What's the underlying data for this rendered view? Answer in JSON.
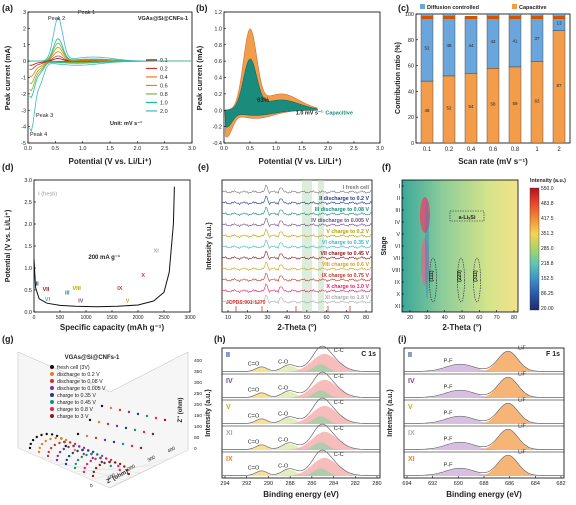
{
  "palette": {
    "cv": [
      "#8b1a1a",
      "#c0392b",
      "#e67e22",
      "#b9a100",
      "#7cb342",
      "#1abc9c",
      "#3fb6c8",
      "#e91e63",
      "#6d4c8d"
    ],
    "orange": "#f39c4a",
    "teal": "#1a8c7e",
    "blue": "#6aa6dc",
    "navy": "#1f3c88"
  },
  "chart_data": [
    {
      "panel": "(a)",
      "type": "line",
      "title": "VGAs@Si@CNFs-1",
      "xlabel": "Potential (V vs. Li/Li⁺)",
      "ylabel": "Peak current (mA)",
      "xlim": [
        0,
        3.0
      ],
      "ylim": [
        -5,
        3
      ],
      "xticks": [
        "0.0",
        "0.5",
        "1.0",
        "1.5",
        "2.0",
        "2.5",
        "3.0"
      ],
      "yticks": [
        "-5",
        "-4",
        "-3",
        "-2",
        "-1",
        "0",
        "1",
        "2",
        "3"
      ],
      "series_names": [
        "0.1",
        "0.2",
        "0.4",
        "0.6",
        "0.8",
        "1.0",
        "2.0"
      ],
      "peak_scale": [
        0.06,
        0.12,
        0.22,
        0.32,
        0.42,
        0.52,
        1.0
      ],
      "annotations": [
        "Peak 1",
        "Peak 2",
        "Peak 3",
        "Peak 4"
      ],
      "unit_label": "Unit:  mV s⁻¹"
    },
    {
      "panel": "(b)",
      "type": "area",
      "xlabel": "Potential (V vs. Li/Li⁺)",
      "ylabel": "Peak current (mA)",
      "xlim": [
        0,
        3.0
      ],
      "ylim": [
        -0.4,
        1.2
      ],
      "xticks": [
        "0.0",
        "0.5",
        "1.0",
        "1.5",
        "2.0",
        "2.5",
        "3.0"
      ],
      "yticks": [
        "-0.4",
        "-0.2",
        "0.0",
        "0.2",
        "0.4",
        "0.6",
        "0.8",
        "1.0",
        "1.2"
      ],
      "inner_label": "63%",
      "rate_label": "1.0 mV s⁻¹",
      "fill_label": "Capacitive"
    },
    {
      "panel": "(c)",
      "type": "bar",
      "xlabel": "Scan rate (mV s⁻¹)",
      "ylabel": "Contribution ratio (%)",
      "categories": [
        "0.1",
        "0.2",
        "0.4",
        "0.6",
        "0.8",
        "1",
        "2"
      ],
      "series": [
        {
          "name": "Capacitive",
          "values": [
            48,
            52,
            54,
            58,
            59,
            63,
            87
          ]
        },
        {
          "name": "Diffusion controlled",
          "values": [
            52,
            48,
            44,
            42,
            41,
            37,
            13
          ]
        }
      ],
      "ylim": [
        0,
        100
      ],
      "yticks": [
        "0",
        "20",
        "40",
        "60",
        "80",
        "100"
      ]
    },
    {
      "panel": "(d)",
      "type": "line",
      "xlabel": "Specific capacity (mAh g⁻¹)",
      "ylabel": "Potential (V vs. Li/Li⁺)",
      "xlim": [
        0,
        3000
      ],
      "ylim": [
        0,
        3.0
      ],
      "xticks": [
        "0",
        "500",
        "1000",
        "1500",
        "2000",
        "2500",
        "3000"
      ],
      "yticks": [
        "0.0",
        "0.5",
        "1.0",
        "1.5",
        "2.0",
        "2.5",
        "3.0"
      ],
      "x": [
        0,
        30,
        100,
        250,
        500,
        800,
        1200,
        1600,
        2000,
        2300,
        2500,
        2600,
        2680,
        2700
      ],
      "y": [
        1.2,
        0.55,
        0.3,
        0.2,
        0.15,
        0.13,
        0.12,
        0.13,
        0.16,
        0.25,
        0.45,
        0.9,
        2.0,
        2.85
      ],
      "fresh_label": "I (fresh)",
      "rate_label": "200 mA g⁻¹",
      "stage_labels": [
        "II",
        "III",
        "IV",
        "V",
        "VI",
        "VII",
        "VIII",
        "IX",
        "X",
        "XI"
      ]
    },
    {
      "panel": "(e)",
      "type": "line",
      "xlabel": "2-Theta (°)",
      "ylabel": "Intensity (a.u.)",
      "xticks": [
        "10",
        "20",
        "30",
        "40",
        "50",
        "60",
        "70",
        "80"
      ],
      "series_names": [
        "I fresh cell",
        "II discharge to 0.2 V",
        "III discharge to 0.08 V",
        "IV discharge to 0.005 V",
        "V charge to 0.2 V",
        "VI charge to 0.35 V",
        "VII charge to 0.45 V",
        "VIII charge to 0.6 V",
        "IX charge to 0.75 V",
        "X charge to 1.0 V",
        "XI charge to 1.8 V"
      ],
      "reference": "JCPDS:001-1270"
    },
    {
      "panel": "(f)",
      "type": "heatmap",
      "xlabel": "2-Theta (°)",
      "ylabel": "Stage",
      "xticks": [
        "20",
        "30",
        "40",
        "50",
        "60",
        "70",
        "80"
      ],
      "yticks": [
        "I",
        "II",
        "III",
        "IV",
        "V",
        "VI",
        "VII",
        "VIII",
        "IX",
        "X",
        "XI"
      ],
      "colorbar_title": "Intensity (a.u.)",
      "colorbar_ticks": [
        "550.0",
        "483.8",
        "417.5",
        "351.3",
        "285.0",
        "218.8",
        "152.5",
        "86.25",
        "20.00"
      ],
      "labels": [
        "a-LiₓSi",
        "(111)",
        "(220)",
        "(311)"
      ]
    },
    {
      "panel": "(g)",
      "type": "line",
      "title": "VGAs@Si@CNFs-1",
      "xlabel": "Z' (ohm)",
      "ylabel": "Z'' (ohm)",
      "zticks": [
        "0",
        "50",
        "100",
        "150",
        "200",
        "250",
        "300",
        "350",
        "400"
      ],
      "xticks": [
        "0",
        "100",
        "200",
        "300",
        "400"
      ],
      "series_names": [
        "fresh cell (3V)",
        "discharge to 0.2 V",
        "discharge to 0.08 V",
        "discharge to 0.005 V",
        "charge to 0.35 V",
        "charge to 0.45 V",
        "charge to 0.8 V",
        "charge to 3 V"
      ]
    },
    {
      "panel": "(h)",
      "type": "line",
      "title": "C 1s",
      "xlabel": "Binding energy (eV)",
      "ylabel": "Intensity (a.u.)",
      "xticks": [
        "294",
        "292",
        "290",
        "288",
        "286",
        "284",
        "282",
        "280"
      ],
      "stages": [
        "II",
        "IV",
        "V",
        "XI",
        "IX"
      ],
      "peak_labels": [
        "C=O",
        "C-O",
        "C-C"
      ]
    },
    {
      "panel": "(i)",
      "type": "line",
      "title": "F 1s",
      "xlabel": "Binding energy (eV)",
      "ylabel": "Intensity (a.u.)",
      "xticks": [
        "694",
        "692",
        "690",
        "688",
        "686",
        "684",
        "682"
      ],
      "stages": [
        "II",
        "IV",
        "V",
        "IX",
        "XI"
      ],
      "peak_labels": [
        "P-F",
        "LiF"
      ]
    }
  ]
}
